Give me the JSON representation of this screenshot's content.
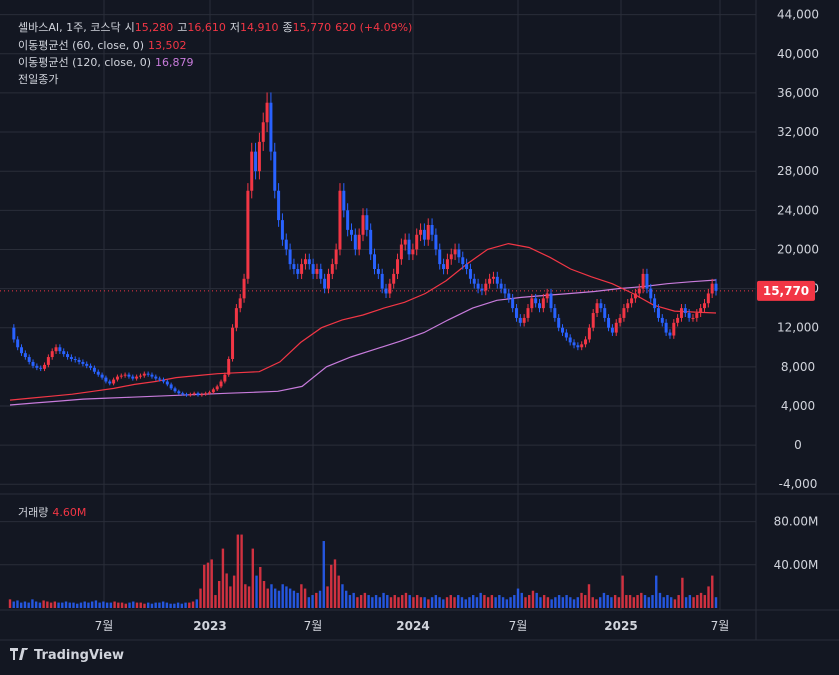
{
  "header": {
    "ticker": "셀바스AI, 1주, 코스닥",
    "open_label": "시",
    "open": "15,280",
    "high_label": "고",
    "high": "16,610",
    "low_label": "저",
    "low": "14,910",
    "close_label": "종",
    "close": "15,770",
    "change": "620 (+4.09%)",
    "ma60_label": "이동평균선 (60, close, 0)",
    "ma60_value": "13,502",
    "ma120_label": "이동평균선 (120, close, 0)",
    "ma120_value": "16,879",
    "prev_close_label": "전일종가"
  },
  "volume_pane": {
    "label": "거래량",
    "value": "4.60M"
  },
  "price_tag": "15,770",
  "colors": {
    "up": "#f23645",
    "down": "#2962ff",
    "ma60": "#f23645",
    "ma120": "#c77bdb",
    "bg": "#131722",
    "grid": "#2a2e39",
    "text": "#d1d4dc"
  },
  "brand": "TradingView",
  "chart_data": {
    "type": "candlestick",
    "price_axis": {
      "ticks": [
        "44,000",
        "40,000",
        "36,000",
        "32,000",
        "28,000",
        "24,000",
        "20,000",
        "16,000",
        "12,000",
        "8,000",
        "4,000",
        "0",
        "-4,000"
      ],
      "ylim": [
        -5000,
        45500
      ]
    },
    "volume_axis": {
      "ticks": [
        "80.00M",
        "40.00M"
      ],
      "ylim": [
        0,
        100
      ]
    },
    "x_ticks": [
      "7월",
      "2023",
      "7월",
      "2024",
      "7월",
      "2025",
      "7월"
    ],
    "price_series": [
      12000,
      10800,
      10000,
      9400,
      9000,
      8500,
      8100,
      7900,
      7800,
      8200,
      9000,
      9600,
      10000,
      9600,
      9300,
      9000,
      8800,
      8700,
      8500,
      8300,
      8100,
      7900,
      7500,
      7200,
      6900,
      6500,
      6300,
      6700,
      7000,
      7100,
      7200,
      7000,
      6800,
      7000,
      7100,
      7300,
      7200,
      7000,
      6800,
      6700,
      6500,
      6200,
      5800,
      5500,
      5300,
      5200,
      5100,
      5200,
      5300,
      5100,
      5200,
      5300,
      5400,
      5700,
      6000,
      6500,
      7200,
      8800,
      12000,
      14000,
      15000,
      17000,
      26000,
      30000,
      28000,
      31000,
      33000,
      35000,
      30000,
      26000,
      23000,
      21000,
      20000,
      18500,
      18000,
      17500,
      18500,
      19000,
      18500,
      17500,
      18000,
      17000,
      16000,
      17500,
      18500,
      20000,
      26000,
      24000,
      22000,
      21500,
      20000,
      21500,
      23500,
      22000,
      19500,
      18000,
      17500,
      16000,
      15500,
      16500,
      17500,
      19000,
      20500,
      21000,
      19500,
      20000,
      21500,
      22000,
      21000,
      22500,
      21500,
      20000,
      18500,
      18000,
      19000,
      19500,
      20000,
      19200,
      18500,
      18000,
      17000,
      16500,
      16000,
      15800,
      16500,
      17000,
      17200,
      16500,
      16000,
      15500,
      15000,
      14000,
      13000,
      12500,
      13000,
      14000,
      15000,
      14500,
      14000,
      15000,
      15500,
      14000,
      13000,
      12000,
      11500,
      11000,
      10500,
      10200,
      10000,
      10300,
      10800,
      12000,
      13500,
      14500,
      14000,
      13000,
      12000,
      11500,
      12500,
      13000,
      14000,
      14500,
      15000,
      15500,
      16000,
      17500,
      16000,
      15000,
      14000,
      13000,
      12500,
      11500,
      11200,
      12500,
      13000,
      14000,
      13500,
      13000,
      13000,
      13500,
      14000,
      14500,
      15500,
      16500,
      15770
    ],
    "ma60": [
      4600,
      4800,
      5000,
      5200,
      5500,
      5800,
      6200,
      6500,
      6900,
      7100,
      7300,
      7400,
      7500,
      8500,
      10500,
      12000,
      12800,
      13300,
      14000,
      14600,
      15500,
      16800,
      18500,
      20000,
      20600,
      20200,
      19200,
      18000,
      17200,
      16500,
      15500,
      14300,
      13700,
      13600,
      13502
    ],
    "ma120": [
      4100,
      4300,
      4500,
      4700,
      4800,
      4900,
      5000,
      5100,
      5200,
      5300,
      5400,
      5500,
      6000,
      8000,
      9000,
      9800,
      10600,
      11500,
      12800,
      14000,
      14800,
      15100,
      15300,
      15500,
      15700,
      16000,
      16200,
      16500,
      16700,
      16879
    ],
    "volume": [
      8,
      6,
      7,
      5,
      6,
      5,
      8,
      6,
      5,
      7,
      6,
      5,
      6,
      5,
      5,
      6,
      5,
      5,
      4,
      5,
      6,
      5,
      6,
      7,
      5,
      6,
      5,
      5,
      6,
      5,
      5,
      4,
      5,
      6,
      5,
      5,
      4,
      5,
      4,
      5,
      5,
      6,
      5,
      4,
      4,
      5,
      4,
      5,
      5,
      6,
      8,
      18,
      40,
      42,
      45,
      12,
      25,
      55,
      32,
      20,
      30,
      68,
      68,
      22,
      20,
      55,
      30,
      38,
      25,
      18,
      22,
      18,
      16,
      22,
      20,
      18,
      16,
      14,
      22,
      18,
      10,
      12,
      14,
      16,
      62,
      20,
      40,
      45,
      30,
      22,
      16,
      12,
      14,
      10,
      12,
      14,
      12,
      10,
      12,
      10,
      14,
      12,
      10,
      12,
      10,
      12,
      14,
      12,
      10,
      12,
      10,
      10,
      8,
      10,
      12,
      10,
      8,
      10,
      12,
      10,
      12,
      10,
      8,
      10,
      12,
      10,
      14,
      12,
      10,
      12,
      10,
      12,
      10,
      8,
      10,
      12,
      18,
      14,
      10,
      12,
      16,
      14,
      10,
      12,
      10,
      8,
      10,
      12,
      10,
      12,
      10,
      8,
      10,
      14,
      12,
      22,
      10,
      8,
      10,
      14,
      12,
      10,
      12,
      10,
      30,
      12,
      12,
      10,
      12,
      14,
      12,
      10,
      12,
      30,
      14,
      10,
      12,
      10,
      8,
      12,
      28,
      10,
      12,
      10,
      12,
      14,
      12,
      20,
      30,
      10
    ]
  }
}
